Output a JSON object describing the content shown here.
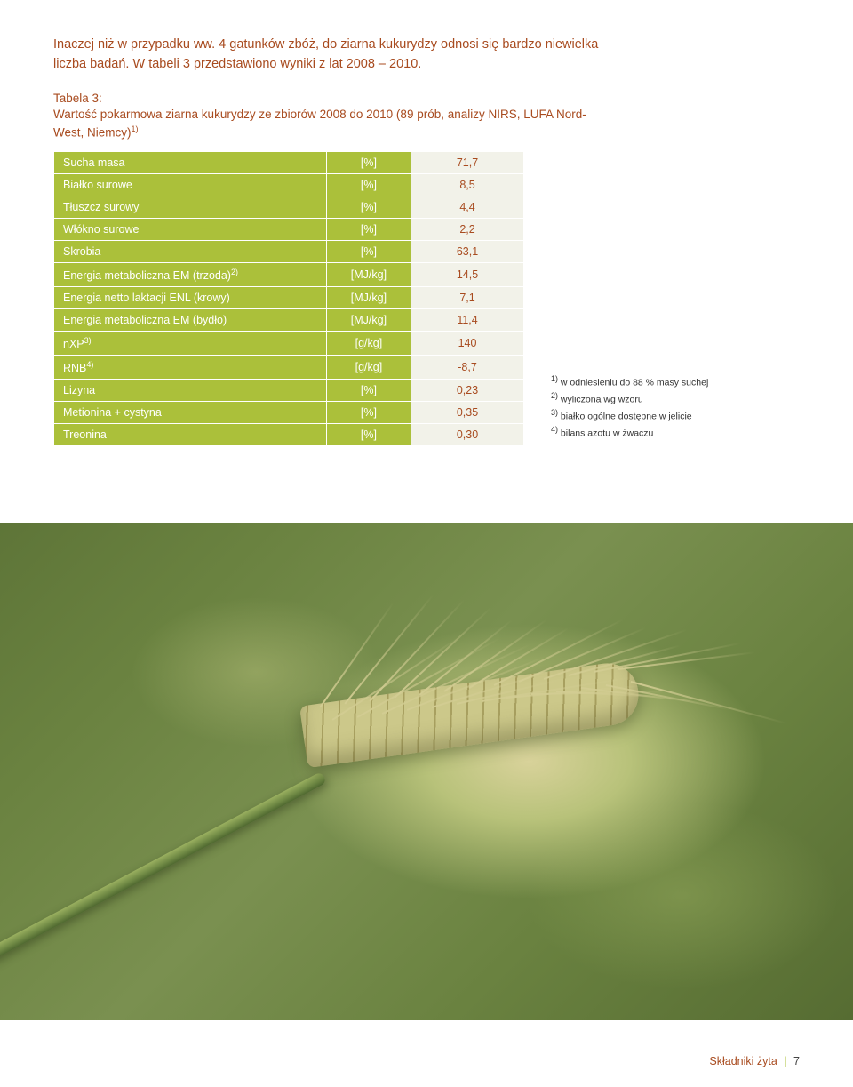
{
  "intro": "Inaczej niż w przypadku ww. 4 gatunków zbóż, do ziarna kukurydzy odnosi się bardzo niewielka liczba badań. W tabeli 3 przedstawiono wyniki z lat 2008 – 2010.",
  "caption_title": "Tabela 3:",
  "caption_body": "Wartość pokarmowa ziarna kukurydzy ze zbiorów 2008 do 2010 (89 prób, analizy NIRS, LUFA Nord-West, Niemcy)",
  "caption_sup": "1)",
  "table": {
    "rows": [
      {
        "param": "Sucha masa",
        "unit": "[%]",
        "val": "71,7"
      },
      {
        "param": "Białko surowe",
        "unit": "[%]",
        "val": "8,5"
      },
      {
        "param": "Tłuszcz surowy",
        "unit": "[%]",
        "val": "4,4"
      },
      {
        "param": "Włókno surowe",
        "unit": "[%]",
        "val": "2,2"
      },
      {
        "param": "Skrobia",
        "unit": "[%]",
        "val": "63,1"
      },
      {
        "param": "Energia metaboliczna EM (trzoda)",
        "param_sup": "2)",
        "unit": "[MJ/kg]",
        "val": "14,5"
      },
      {
        "param": "Energia netto laktacji ENL (krowy)",
        "unit": "[MJ/kg]",
        "val": "7,1"
      },
      {
        "param": "Energia metaboliczna EM (bydło)",
        "unit": "[MJ/kg]",
        "val": "11,4"
      },
      {
        "param": "nXP",
        "param_sup": "3)",
        "unit": "[g/kg]",
        "val": "140"
      },
      {
        "param": "RNB",
        "param_sup": "4)",
        "unit": "[g/kg]",
        "val": "-8,7"
      },
      {
        "param": "Lizyna",
        "unit": "[%]",
        "val": "0,23"
      },
      {
        "param": "Metionina + cystyna",
        "unit": "[%]",
        "val": "0,35"
      },
      {
        "param": "Treonina",
        "unit": "[%]",
        "val": "0,30"
      }
    ],
    "colors": {
      "header_bg": "#abc03a",
      "header_text": "#ffffff",
      "value_bg": "#f2f2e9",
      "value_text": "#a84b1f"
    }
  },
  "footnotes": [
    {
      "sup": "1)",
      "text": "w odniesieniu do 88 % masy suchej"
    },
    {
      "sup": "2)",
      "text": "wyliczona wg wzoru"
    },
    {
      "sup": "3)",
      "text": "białko ogólne dostępne w jelicie"
    },
    {
      "sup": "4)",
      "text": "bilans azotu w żwaczu"
    }
  ],
  "footer": {
    "label": "Składniki żyta",
    "page": "7"
  }
}
